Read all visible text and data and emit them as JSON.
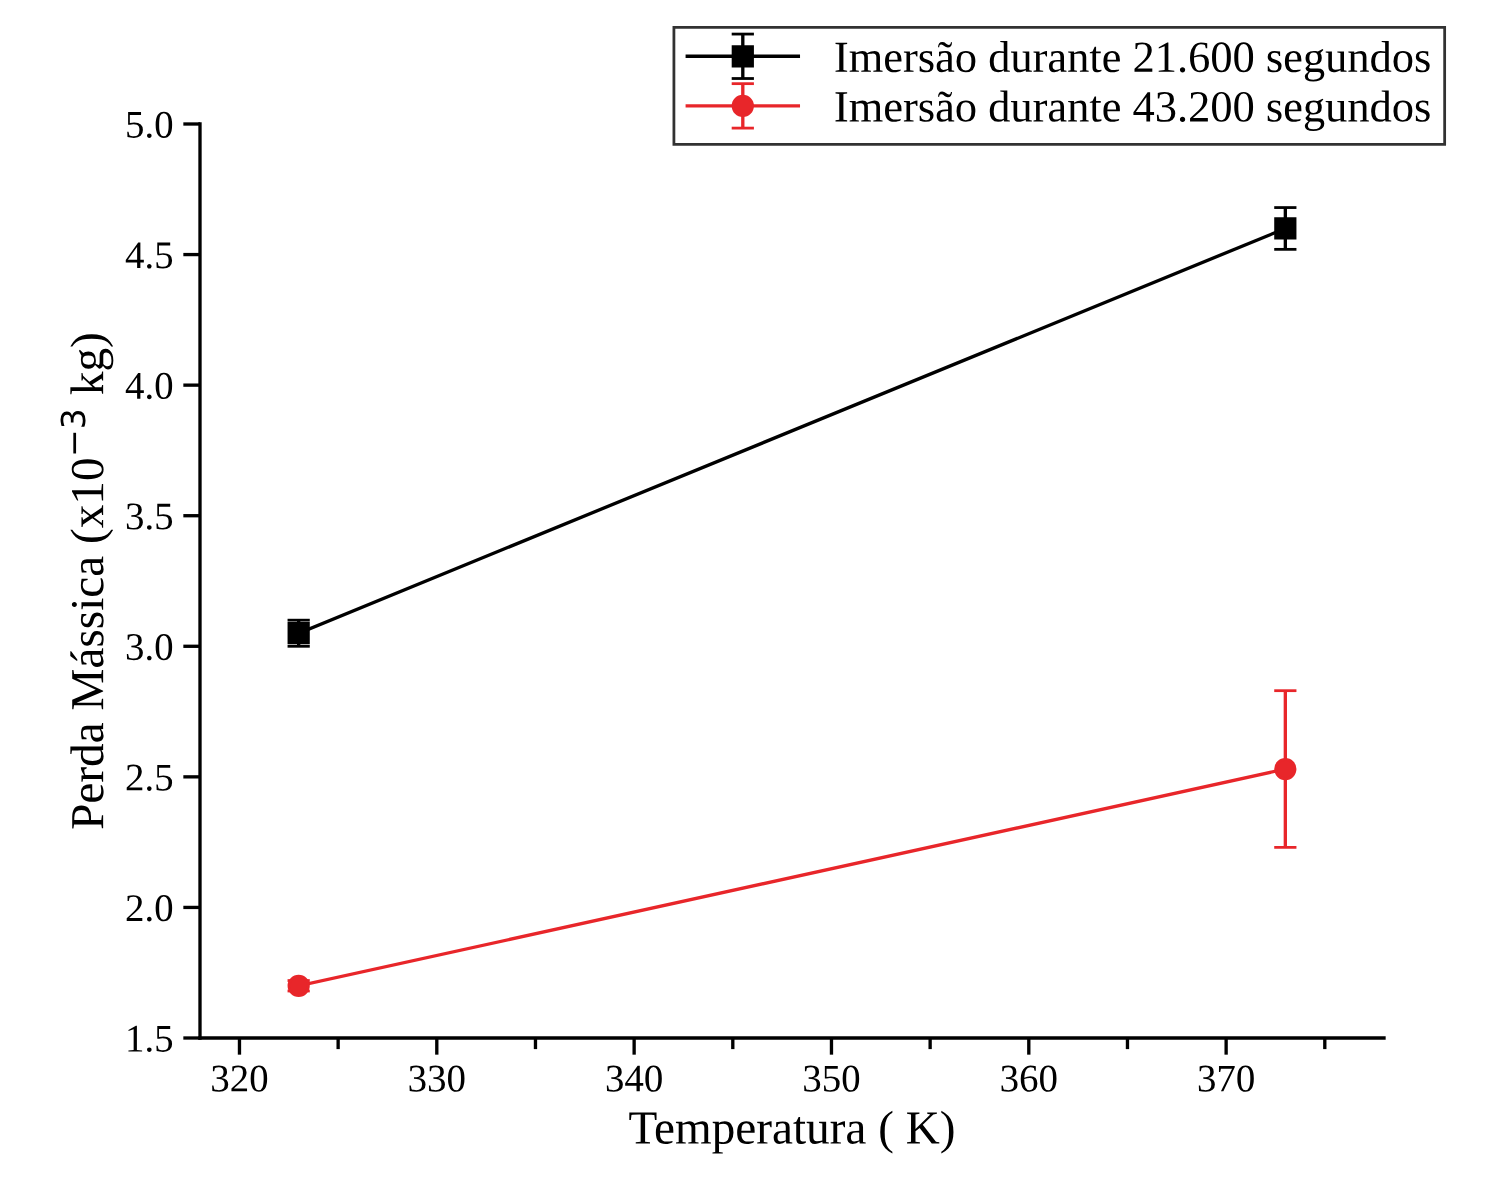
{
  "chart_data": {
    "type": "line",
    "xlabel": "Temperatura ( K)",
    "ylabel": "Perda Mássica (x10$^{−3}$ kg)",
    "x": [
      323,
      373
    ],
    "series": [
      {
        "name": "Imersão durante 21.600 segundos",
        "color": "#000000",
        "marker": "square",
        "values": [
          3.05,
          4.6
        ],
        "errors": [
          0.05,
          0.08
        ]
      },
      {
        "name": "Imersão durante 43.200 segundos",
        "color": "#e8262a",
        "marker": "circle",
        "values": [
          1.7,
          2.53
        ],
        "errors": [
          0.02,
          0.3
        ]
      }
    ],
    "xlim": [
      318,
      378
    ],
    "xticks": [
      320,
      330,
      340,
      350,
      360,
      370
    ],
    "ylim": [
      1.5,
      5.0
    ],
    "yticks": [
      {
        "value": 1.5,
        "label": "1.5"
      },
      {
        "value": 2.0,
        "label": "2.0"
      },
      {
        "value": 2.5,
        "label": "2.5"
      },
      {
        "value": 3.0,
        "label": "3.0"
      },
      {
        "value": 3.5,
        "label": "3.5"
      },
      {
        "value": 4.0,
        "label": "4.0"
      },
      {
        "value": 4.5,
        "label": "4.5"
      },
      {
        "value": 5.0,
        "label": "5.0"
      }
    ],
    "grid": false,
    "legend": "top right",
    "line_style": "solid"
  }
}
